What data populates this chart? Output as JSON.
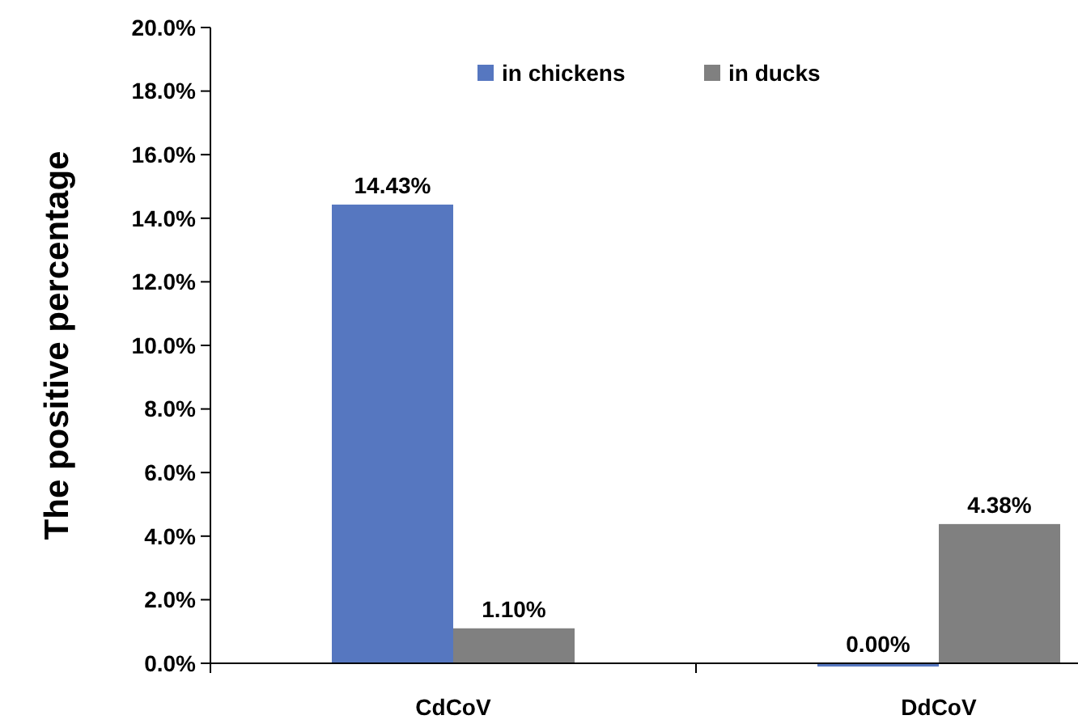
{
  "chart_data": {
    "type": "bar",
    "ylabel": "The positive percentage",
    "categories": [
      "CdCoV",
      "DdCoV"
    ],
    "series": [
      {
        "name": "in chickens",
        "color": "#5677c0",
        "values": [
          14.43,
          0.0
        ],
        "value_labels": [
          "14.43%",
          "0.00%"
        ]
      },
      {
        "name": "in ducks",
        "color": "#808080",
        "values": [
          1.1,
          4.38
        ],
        "value_labels": [
          "1.10%",
          "4.38%"
        ]
      }
    ],
    "ylim": [
      0,
      20
    ],
    "yticks": [
      {
        "value": 0,
        "label": "0.0%"
      },
      {
        "value": 2,
        "label": "2.0%"
      },
      {
        "value": 4,
        "label": "4.0%"
      },
      {
        "value": 6,
        "label": "6.0%"
      },
      {
        "value": 8,
        "label": "8.0%"
      },
      {
        "value": 10,
        "label": "10.0%"
      },
      {
        "value": 12,
        "label": "12.0%"
      },
      {
        "value": 14,
        "label": "14.0%"
      },
      {
        "value": 16,
        "label": "16.0%"
      },
      {
        "value": 18,
        "label": "18.0%"
      },
      {
        "value": 20,
        "label": "20.0%"
      }
    ],
    "legend": "top",
    "grid": false
  }
}
